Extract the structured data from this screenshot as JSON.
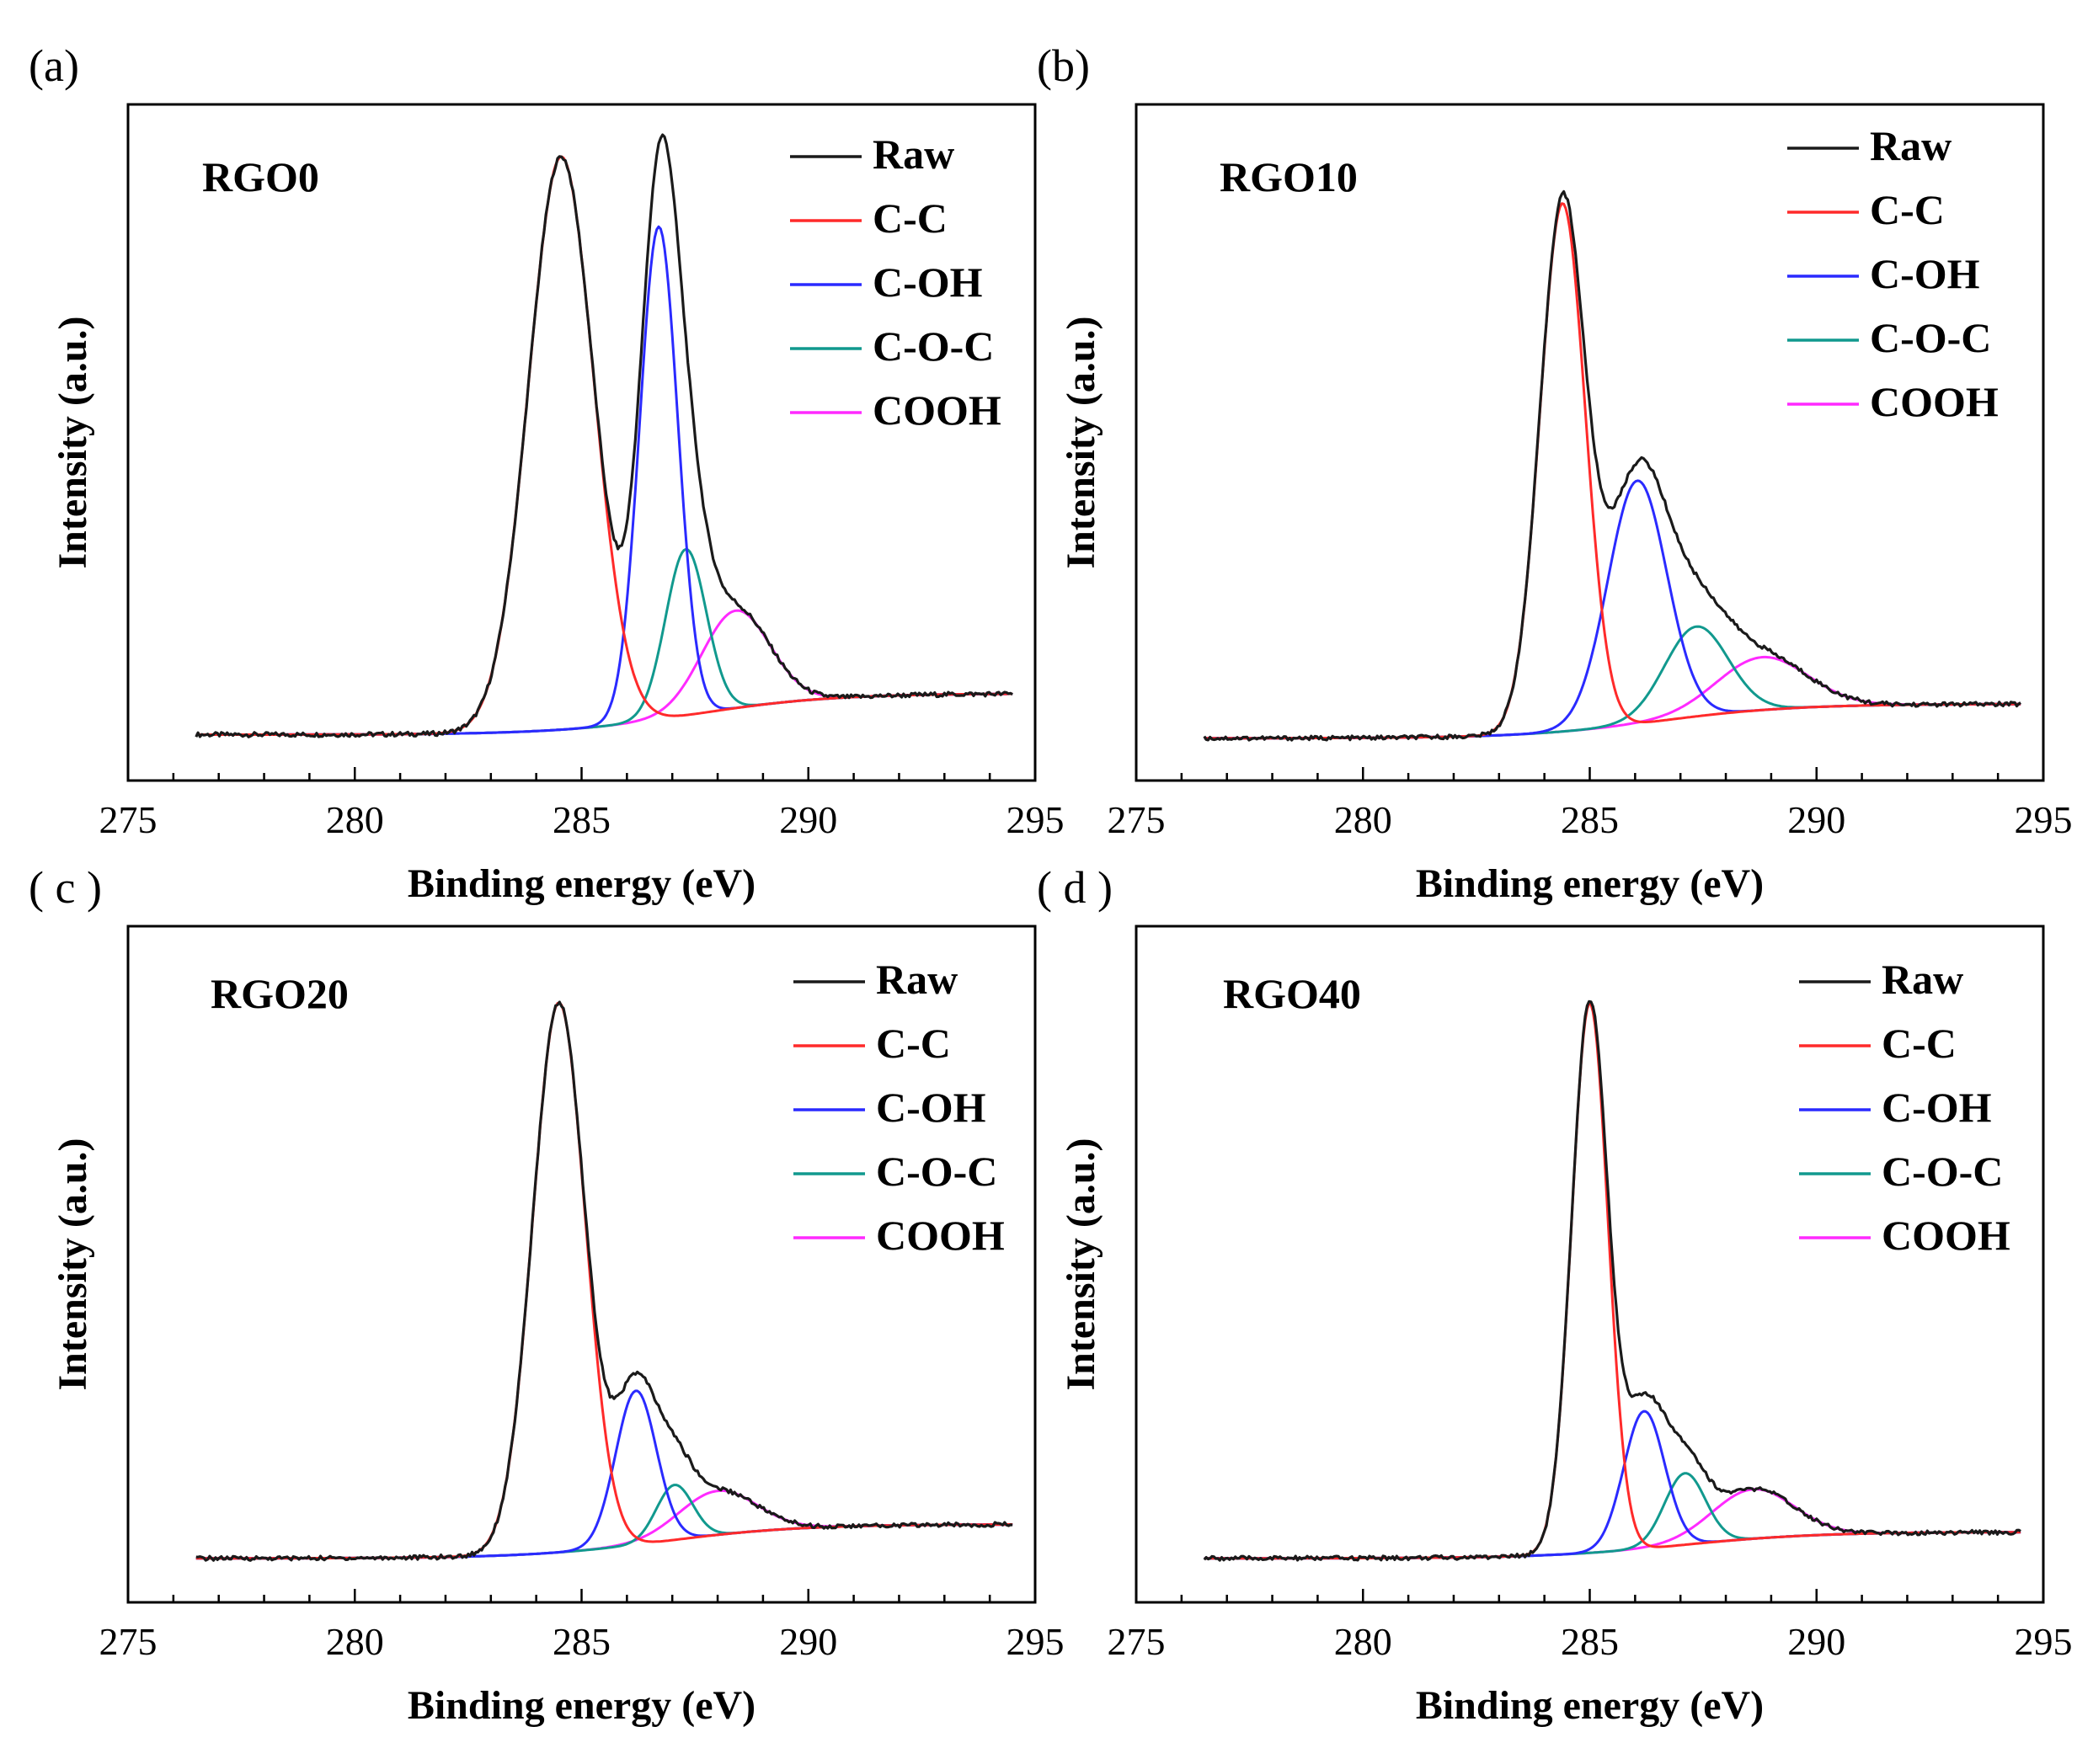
{
  "figure": {
    "description_free": true
  },
  "colors": {
    "raw": "#1a1a1a",
    "c_c": "#ff2a2a",
    "c_oh": "#2a2aff",
    "c_o_c": "#11998e",
    "cooh": "#ff2aff",
    "axis": "#000000"
  },
  "chart_data": [
    {
      "type": "line",
      "panel_label": "(a)",
      "sample_label": "RGO0",
      "xlabel": "Binding energy (eV)",
      "ylabel": "Intensity (a.u.)",
      "xlim": [
        275,
        295
      ],
      "ylim": [
        -0.08,
        1.1
      ],
      "xticks": [
        "275",
        "280",
        "285",
        "290",
        "295"
      ],
      "legend": [
        "Raw",
        "C-C",
        "C-OH",
        "C-O-C",
        "COOH"
      ],
      "x_range": [
        276.5,
        294.5
      ],
      "baseline": {
        "start": 0.0,
        "end": 0.072,
        "center": 287.5,
        "width": 1.5
      },
      "components": {
        "C-C": {
          "center": 284.55,
          "height": 1.0,
          "sigma": 0.72
        },
        "C-OH": {
          "center": 286.7,
          "height": 0.86,
          "sigma": 0.42
        },
        "C-O-C": {
          "center": 287.3,
          "height": 0.29,
          "sigma": 0.45
        },
        "COOH": {
          "center": 288.4,
          "height": 0.17,
          "sigma": 0.75
        }
      }
    },
    {
      "type": "line",
      "panel_label": "(b)",
      "sample_label": "RGO10",
      "xlabel": "Binding energy (eV)",
      "ylabel": "Intensity (a.u.)",
      "xlim": [
        275,
        295
      ],
      "ylim": [
        -0.08,
        1.2
      ],
      "xticks": [
        "275",
        "280",
        "285",
        "290",
        "295"
      ],
      "legend": [
        "Raw",
        "C-C",
        "C-OH",
        "C-O-C",
        "COOH"
      ],
      "x_range": [
        276.5,
        294.5
      ],
      "baseline": {
        "start": 0.0,
        "end": 0.065,
        "center": 286.5,
        "width": 1.5
      },
      "components": {
        "C-C": {
          "center": 284.4,
          "height": 1.0,
          "sigma": 0.5
        },
        "C-OH": {
          "center": 286.05,
          "height": 0.46,
          "sigma": 0.65
        },
        "C-O-C": {
          "center": 287.35,
          "height": 0.17,
          "sigma": 0.7
        },
        "COOH": {
          "center": 288.8,
          "height": 0.1,
          "sigma": 1.0
        }
      }
    },
    {
      "type": "line",
      "panel_label": "( c )",
      "sample_label": "RGO20",
      "xlabel": "Binding energy (eV)",
      "ylabel": "Intensity (a.u.)",
      "xlim": [
        275,
        295
      ],
      "ylim": [
        -0.08,
        1.15
      ],
      "xticks": [
        "275",
        "280",
        "285",
        "290",
        "295"
      ],
      "legend": [
        "Raw",
        "C-C",
        "C-OH",
        "C-O-C",
        "COOH"
      ],
      "x_range": [
        276.5,
        294.5
      ],
      "baseline": {
        "start": 0.0,
        "end": 0.062,
        "center": 286.8,
        "width": 1.5
      },
      "components": {
        "C-C": {
          "center": 284.5,
          "height": 1.0,
          "sigma": 0.58
        },
        "C-OH": {
          "center": 286.2,
          "height": 0.28,
          "sigma": 0.45
        },
        "C-O-C": {
          "center": 287.05,
          "height": 0.1,
          "sigma": 0.4
        },
        "COOH": {
          "center": 288.0,
          "height": 0.08,
          "sigma": 0.85
        }
      }
    },
    {
      "type": "line",
      "panel_label": "( d )",
      "sample_label": "RGO40",
      "xlabel": "Binding energy (eV)",
      "ylabel": "Intensity (a.u.)",
      "xlim": [
        275,
        295
      ],
      "ylim": [
        -0.08,
        1.15
      ],
      "xticks": [
        "275",
        "280",
        "285",
        "290",
        "295"
      ],
      "legend": [
        "Raw",
        "C-C",
        "C-OH",
        "C-O-C",
        "COOH"
      ],
      "x_range": [
        276.5,
        294.5
      ],
      "baseline": {
        "start": 0.0,
        "end": 0.048,
        "center": 287.0,
        "width": 1.5
      },
      "components": {
        "C-C": {
          "center": 285.0,
          "height": 1.0,
          "sigma": 0.4
        },
        "C-OH": {
          "center": 286.2,
          "height": 0.25,
          "sigma": 0.45
        },
        "C-O-C": {
          "center": 287.1,
          "height": 0.13,
          "sigma": 0.45
        },
        "COOH": {
          "center": 288.6,
          "height": 0.09,
          "sigma": 0.9
        }
      }
    }
  ]
}
